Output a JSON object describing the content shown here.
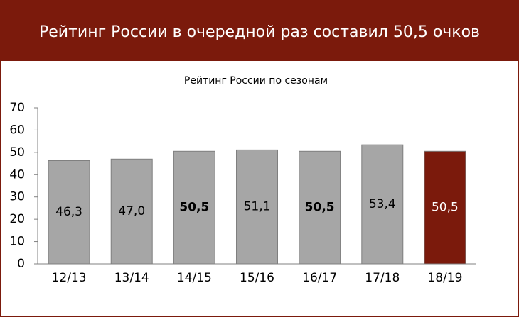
{
  "chart_data": {
    "type": "bar",
    "title": "Рейтинг России в очередной раз составил 50,5 очков",
    "subtitle": "Рейтинг России по сезонам",
    "categories": [
      "12/13",
      "13/14",
      "14/15",
      "15/16",
      "16/17",
      "17/18",
      "18/19"
    ],
    "values": [
      46.3,
      47.0,
      50.5,
      51.1,
      50.5,
      53.4,
      50.5
    ],
    "value_labels": [
      "46,3",
      "47,0",
      "50,5",
      "51,1",
      "50,5",
      "53,4",
      "50,5"
    ],
    "colors": [
      "#a6a6a6",
      "#a6a6a6",
      "#a6a6a6",
      "#a6a6a6",
      "#a6a6a6",
      "#a6a6a6",
      "#7b1a0c"
    ],
    "label_colors": [
      "#000000",
      "#000000",
      "#000000",
      "#000000",
      "#000000",
      "#000000",
      "#ffffff"
    ],
    "bold_labels": [
      false,
      false,
      true,
      false,
      true,
      false,
      false
    ],
    "ylim": [
      0,
      70
    ],
    "yticks": [
      0,
      10,
      20,
      30,
      40,
      50,
      60,
      70
    ],
    "grid": false
  }
}
